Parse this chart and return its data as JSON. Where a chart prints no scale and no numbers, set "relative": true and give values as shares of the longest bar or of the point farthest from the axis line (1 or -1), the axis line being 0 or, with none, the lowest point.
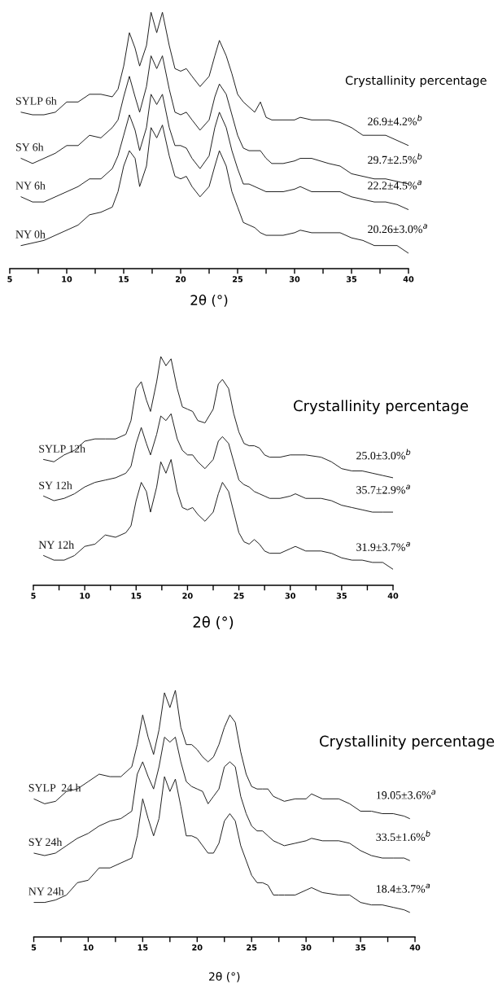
{
  "chart_data": [
    {
      "type": "line",
      "relative": true,
      "xlabel": "2θ (°)",
      "xlim": [
        5,
        40
      ],
      "xticks": [
        5,
        {
          "value": 7.5,
          "label": null
        },
        10,
        {
          "value": 12.5,
          "label": null
        },
        15,
        {
          "value": 17.5,
          "label": null
        },
        20,
        {
          "value": 22.5,
          "label": null
        },
        25,
        {
          "value": 27.5,
          "label": null
        },
        30,
        {
          "value": 32.5,
          "label": null
        },
        35,
        {
          "value": 37.5,
          "label": null
        },
        40
      ],
      "x": [
        6,
        7,
        8,
        9,
        10,
        11,
        12,
        13,
        14,
        14.5,
        15,
        15.5,
        16,
        16.4,
        17,
        17.4,
        17.9,
        18.4,
        19,
        19.5,
        20,
        20.5,
        21,
        21.7,
        22.5,
        23,
        23.4,
        24,
        24.5,
        25,
        25.5,
        26,
        26.5,
        27,
        27.5,
        28,
        29,
        30,
        30.5,
        31.5,
        33,
        34,
        35,
        36,
        37,
        38,
        39,
        40
      ],
      "series": [
        {
          "name": "SYLP 6h",
          "color": "#1a1a1a",
          "values": [
            0.61,
            0.6,
            0.6,
            0.61,
            0.65,
            0.65,
            0.68,
            0.68,
            0.67,
            0.7,
            0.79,
            0.92,
            0.86,
            0.79,
            0.87,
            1.0,
            0.92,
            1.0,
            0.87,
            0.78,
            0.77,
            0.78,
            0.75,
            0.71,
            0.75,
            0.83,
            0.89,
            0.83,
            0.76,
            0.68,
            0.65,
            0.63,
            0.61,
            0.65,
            0.59,
            0.58,
            0.58,
            0.58,
            0.59,
            0.58,
            0.58,
            0.57,
            0.55,
            0.52,
            0.52,
            0.52,
            0.5,
            0.48
          ]
        },
        {
          "name": "SY 6h",
          "color": "#1a1a1a",
          "values": [
            0.43,
            0.41,
            0.43,
            0.45,
            0.48,
            0.48,
            0.52,
            0.51,
            0.55,
            0.58,
            0.67,
            0.75,
            0.67,
            0.61,
            0.71,
            0.83,
            0.78,
            0.83,
            0.7,
            0.61,
            0.6,
            0.61,
            0.58,
            0.54,
            0.58,
            0.67,
            0.72,
            0.68,
            0.6,
            0.52,
            0.47,
            0.46,
            0.46,
            0.46,
            0.43,
            0.41,
            0.41,
            0.42,
            0.43,
            0.43,
            0.41,
            0.4,
            0.37,
            0.36,
            0.35,
            0.35,
            0.34,
            0.33
          ]
        },
        {
          "name": "NY 6h",
          "color": "#1a1a1a",
          "values": [
            0.28,
            0.26,
            0.26,
            0.28,
            0.3,
            0.32,
            0.35,
            0.35,
            0.39,
            0.44,
            0.52,
            0.6,
            0.54,
            0.46,
            0.55,
            0.68,
            0.64,
            0.68,
            0.55,
            0.48,
            0.48,
            0.47,
            0.43,
            0.39,
            0.44,
            0.55,
            0.61,
            0.55,
            0.46,
            0.39,
            0.33,
            0.33,
            0.32,
            0.31,
            0.3,
            0.3,
            0.3,
            0.31,
            0.32,
            0.3,
            0.3,
            0.3,
            0.28,
            0.27,
            0.26,
            0.26,
            0.25,
            0.23
          ]
        },
        {
          "name": "NY 0h",
          "color": "#1a1a1a",
          "values": [
            0.09,
            0.1,
            0.11,
            0.13,
            0.15,
            0.17,
            0.21,
            0.22,
            0.24,
            0.3,
            0.4,
            0.46,
            0.43,
            0.32,
            0.4,
            0.55,
            0.51,
            0.56,
            0.44,
            0.36,
            0.35,
            0.36,
            0.32,
            0.28,
            0.32,
            0.4,
            0.46,
            0.4,
            0.3,
            0.24,
            0.18,
            0.17,
            0.16,
            0.14,
            0.13,
            0.13,
            0.13,
            0.14,
            0.15,
            0.14,
            0.14,
            0.14,
            0.12,
            0.11,
            0.09,
            0.09,
            0.09,
            0.06
          ]
        }
      ],
      "annotations": [
        "Crystallinity percentage",
        "26.9±4.2%$^{b}$",
        "29.7±2.5%$^{b}$",
        "22.2±4.5%$^{a}$",
        "20.26±3.0%$^{a}$"
      ]
    },
    {
      "type": "line",
      "relative": true,
      "xlabel": "2θ (°)",
      "xlim": [
        5,
        40
      ],
      "xticks": [
        5,
        {
          "value": 7.5,
          "label": null
        },
        10,
        {
          "value": 12.5,
          "label": null
        },
        15,
        {
          "value": 17.5,
          "label": null
        },
        20,
        {
          "value": 22.5,
          "label": null
        },
        25,
        {
          "value": 27.5,
          "label": null
        },
        30,
        {
          "value": 32.5,
          "label": null
        },
        35,
        {
          "value": 37.5,
          "label": null
        },
        40
      ],
      "x": [
        6,
        7,
        8,
        9,
        10,
        11,
        12,
        13,
        14,
        14.5,
        15,
        15.5,
        16,
        16.4,
        17,
        17.4,
        17.9,
        18.4,
        19,
        19.5,
        20,
        20.5,
        21,
        21.7,
        22.5,
        23,
        23.4,
        24,
        24.5,
        25,
        25.5,
        26,
        26.5,
        27,
        27.5,
        28,
        29,
        30,
        30.5,
        31.5,
        33,
        34,
        35,
        36,
        37,
        38,
        39,
        40
      ],
      "series": [
        {
          "name": "SYLP 12h",
          "color": "#1a1a1a",
          "values": [
            0.55,
            0.54,
            0.57,
            0.59,
            0.63,
            0.64,
            0.64,
            0.64,
            0.66,
            0.72,
            0.86,
            0.89,
            0.81,
            0.76,
            0.89,
            1.0,
            0.96,
            0.99,
            0.86,
            0.78,
            0.77,
            0.76,
            0.72,
            0.71,
            0.77,
            0.88,
            0.9,
            0.86,
            0.75,
            0.67,
            0.62,
            0.61,
            0.61,
            0.6,
            0.57,
            0.56,
            0.56,
            0.57,
            0.57,
            0.57,
            0.56,
            0.54,
            0.51,
            0.5,
            0.5,
            0.49,
            0.48,
            0.47
          ]
        },
        {
          "name": "SY 12h",
          "color": "#1a1a1a",
          "values": [
            0.39,
            0.37,
            0.38,
            0.4,
            0.43,
            0.45,
            0.46,
            0.47,
            0.49,
            0.52,
            0.62,
            0.69,
            0.62,
            0.57,
            0.66,
            0.74,
            0.72,
            0.75,
            0.64,
            0.59,
            0.57,
            0.57,
            0.54,
            0.51,
            0.55,
            0.63,
            0.65,
            0.62,
            0.54,
            0.46,
            0.44,
            0.43,
            0.41,
            0.4,
            0.39,
            0.38,
            0.38,
            0.39,
            0.4,
            0.38,
            0.38,
            0.37,
            0.35,
            0.34,
            0.33,
            0.32,
            0.32,
            0.32
          ]
        },
        {
          "name": "NY 12h",
          "color": "#1a1a1a",
          "values": [
            0.13,
            0.11,
            0.11,
            0.13,
            0.17,
            0.18,
            0.22,
            0.21,
            0.23,
            0.26,
            0.37,
            0.45,
            0.41,
            0.32,
            0.43,
            0.54,
            0.49,
            0.55,
            0.41,
            0.34,
            0.33,
            0.34,
            0.31,
            0.28,
            0.32,
            0.4,
            0.45,
            0.41,
            0.32,
            0.23,
            0.19,
            0.18,
            0.2,
            0.18,
            0.15,
            0.14,
            0.14,
            0.16,
            0.17,
            0.15,
            0.15,
            0.14,
            0.12,
            0.11,
            0.11,
            0.1,
            0.1,
            0.07
          ]
        }
      ],
      "annotations": [
        "Crystallinity percentage",
        "25.0±3.0%$^{b}$",
        "35.7±2.9%$^{a}$",
        "31.9±3.7%$^{a}$"
      ]
    },
    {
      "type": "line",
      "relative": true,
      "xlabel": "2θ (°)",
      "xlim": [
        5,
        40
      ],
      "xticks": [
        5,
        {
          "value": 7.5,
          "label": null
        },
        10,
        {
          "value": 12.5,
          "label": null
        },
        15,
        {
          "value": 17.5,
          "label": null
        },
        20,
        {
          "value": 22.5,
          "label": null
        },
        25,
        {
          "value": 27.5,
          "label": null
        },
        30,
        {
          "value": 32.5,
          "label": null
        },
        35,
        {
          "value": 37.5,
          "label": null
        },
        40
      ],
      "x": [
        5,
        6,
        7,
        8,
        9,
        10,
        11,
        12,
        13,
        14,
        14.5,
        15,
        15.5,
        16,
        16.5,
        17,
        17.5,
        18,
        18.5,
        19,
        19.5,
        20,
        20.5,
        21,
        21.5,
        22,
        22.5,
        23,
        23.5,
        24,
        24.5,
        25,
        25.5,
        26,
        26.5,
        27,
        27.5,
        28,
        29,
        30,
        30.5,
        31.5,
        33,
        34,
        35,
        36,
        37,
        38,
        39,
        39.5
      ],
      "series": [
        {
          "name": "SYLP  24 h",
          "color": "#1a1a1a",
          "values": [
            0.56,
            0.54,
            0.55,
            0.59,
            0.6,
            0.63,
            0.66,
            0.65,
            0.65,
            0.69,
            0.78,
            0.9,
            0.81,
            0.74,
            0.84,
            0.99,
            0.93,
            1.0,
            0.85,
            0.78,
            0.78,
            0.76,
            0.73,
            0.71,
            0.73,
            0.78,
            0.85,
            0.9,
            0.87,
            0.75,
            0.66,
            0.61,
            0.6,
            0.6,
            0.6,
            0.57,
            0.56,
            0.55,
            0.56,
            0.56,
            0.58,
            0.56,
            0.56,
            0.54,
            0.51,
            0.51,
            0.5,
            0.5,
            0.49,
            0.48
          ]
        },
        {
          "name": "SY 24h",
          "color": "#1a1a1a",
          "values": [
            0.34,
            0.33,
            0.34,
            0.37,
            0.4,
            0.42,
            0.45,
            0.47,
            0.48,
            0.51,
            0.66,
            0.71,
            0.65,
            0.6,
            0.69,
            0.81,
            0.79,
            0.81,
            0.71,
            0.63,
            0.61,
            0.6,
            0.59,
            0.54,
            0.57,
            0.6,
            0.69,
            0.71,
            0.69,
            0.57,
            0.5,
            0.45,
            0.43,
            0.43,
            0.41,
            0.39,
            0.38,
            0.37,
            0.38,
            0.39,
            0.4,
            0.39,
            0.39,
            0.38,
            0.35,
            0.33,
            0.32,
            0.32,
            0.32,
            0.31
          ]
        },
        {
          "name": "NY 24h",
          "color": "#1a1a1a",
          "values": [
            0.14,
            0.14,
            0.15,
            0.17,
            0.22,
            0.23,
            0.28,
            0.28,
            0.3,
            0.32,
            0.41,
            0.56,
            0.48,
            0.41,
            0.48,
            0.65,
            0.59,
            0.64,
            0.53,
            0.41,
            0.41,
            0.4,
            0.37,
            0.34,
            0.34,
            0.38,
            0.47,
            0.5,
            0.47,
            0.37,
            0.31,
            0.25,
            0.22,
            0.22,
            0.21,
            0.17,
            0.17,
            0.17,
            0.17,
            0.19,
            0.2,
            0.18,
            0.17,
            0.17,
            0.14,
            0.13,
            0.13,
            0.12,
            0.11,
            0.1
          ]
        }
      ],
      "annotations": [
        "Crystallinity percentage",
        "19.05±3.6%$^{a}$",
        "33.5±1.6%$^{b}$",
        "18.4±3.7%$^{a}$"
      ]
    }
  ]
}
